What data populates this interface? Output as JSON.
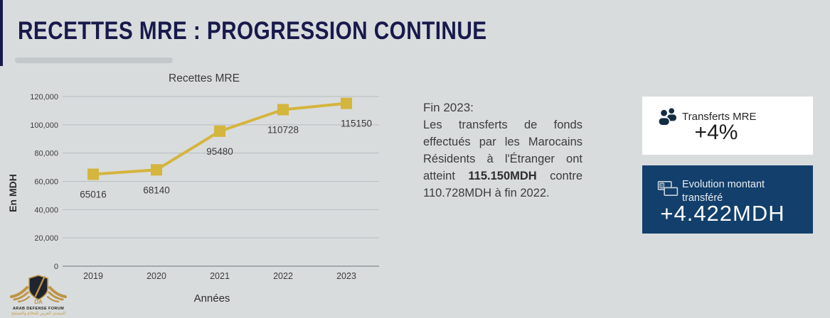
{
  "header": {
    "title": "RECETTES MRE : PROGRESSION CONTINUE"
  },
  "chart_data": {
    "type": "line",
    "title": "Recettes MRE",
    "xlabel": "Années",
    "ylabel": "En MDH",
    "categories": [
      "2019",
      "2020",
      "2021",
      "2022",
      "2023"
    ],
    "values": [
      65016,
      68140,
      95480,
      110728,
      115150
    ],
    "data_labels": [
      "65016",
      "68140",
      "95480",
      "110728",
      "115150"
    ],
    "ylim": [
      0,
      120000
    ],
    "ytick_interval": 20000,
    "yticks": [
      "0",
      "20,000",
      "40,000",
      "60,000",
      "80,000",
      "100,000",
      "120,000"
    ],
    "line_color": "#d4b53d",
    "marker": "square",
    "grid": true,
    "legend": "none"
  },
  "summary": {
    "heading": "Fin 2023:",
    "body_before": "Les transferts de fonds effectués par les Marocains Résidents à l'Étranger ont atteint ",
    "body_bold": "115.150MDH",
    "body_after": " contre 110.728MDH à fin 2022."
  },
  "cards": [
    {
      "icon": "people-icon",
      "label": "Transferts MRE",
      "value": "+4%",
      "bg": "#ffffff"
    },
    {
      "icon": "banknotes-icon",
      "label": "Evolution montant transféré",
      "value": "+4.422MDH",
      "bg": "#123f6b"
    }
  ],
  "logo": {
    "initials": "DA",
    "line1": "ARAB DEFENSE FORUM",
    "line2": "المنتدى العربي للدفاع والتسليح"
  },
  "colors": {
    "background": "#d9dcdd",
    "title_navy": "#171a4a",
    "gold": "#d4b53d",
    "card_dark_blue": "#123f6b",
    "icon_navy": "#142c42",
    "logo_gold": "#bd9545"
  }
}
